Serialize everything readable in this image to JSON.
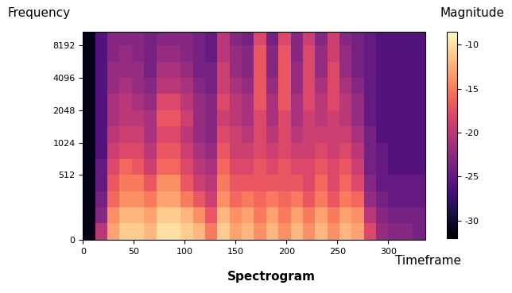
{
  "chart_data": {
    "type": "heatmap",
    "title": "Spectrogram",
    "y_label": "Frequency",
    "x_label": "Timeframe",
    "colorbar_label": "Magnitude",
    "log": "y",
    "xlim": [
      0,
      336
    ],
    "xticks": [
      0,
      50,
      100,
      150,
      200,
      250,
      300
    ],
    "ylim": [
      0,
      11025
    ],
    "yticks": [
      0,
      512,
      1024,
      2048,
      4096,
      8192
    ],
    "x_edges": [
      0,
      12,
      24,
      36,
      48,
      60,
      72,
      84,
      96,
      108,
      120,
      132,
      144,
      156,
      168,
      180,
      192,
      204,
      216,
      228,
      240,
      252,
      264,
      276,
      288,
      300,
      312,
      324,
      336
    ],
    "y_edges": [
      0,
      128,
      256,
      384,
      512,
      724,
      1024,
      1448,
      2048,
      2896,
      4096,
      5793,
      8192,
      11025
    ],
    "cells": [
      [
        -31,
        -20,
        -13,
        -11,
        -11,
        -12,
        -10,
        -10,
        -11,
        -12,
        -15,
        -11,
        -13,
        -12,
        -14,
        -12,
        -14,
        -12,
        -14,
        -12,
        -14,
        -12,
        -13,
        -18,
        -22,
        -23,
        -23,
        -24
      ],
      [
        -31,
        -23,
        -14,
        -12,
        -12,
        -13,
        -11,
        -11,
        -12,
        -14,
        -17,
        -12,
        -14,
        -13,
        -15,
        -13,
        -15,
        -13,
        -15,
        -13,
        -15,
        -13,
        -14,
        -20,
        -23,
        -24,
        -24,
        -24
      ],
      [
        -31,
        -24,
        -16,
        -14,
        -14,
        -15,
        -13,
        -13,
        -15,
        -17,
        -19,
        -14,
        -16,
        -15,
        -16,
        -15,
        -16,
        -15,
        -17,
        -15,
        -17,
        -15,
        -16,
        -22,
        -24,
        -25,
        -25,
        -25
      ],
      [
        -31,
        -25,
        -17,
        -15,
        -15,
        -17,
        -14,
        -14,
        -17,
        -19,
        -20,
        -15,
        -17,
        -17,
        -17,
        -17,
        -17,
        -17,
        -18,
        -16,
        -18,
        -16,
        -18,
        -23,
        -25,
        -25,
        -25,
        -25
      ],
      [
        -31,
        -25,
        -18,
        -16,
        -17,
        -19,
        -16,
        -16,
        -18,
        -20,
        -21,
        -16,
        -18,
        -18,
        -17,
        -18,
        -17,
        -18,
        -18,
        -17,
        -18,
        -17,
        -19,
        -24,
        -25,
        -26,
        -26,
        -26
      ],
      [
        -31,
        -26,
        -19,
        -18,
        -18,
        -20,
        -17,
        -17,
        -19,
        -21,
        -22,
        -17,
        -19,
        -19,
        -18,
        -19,
        -18,
        -19,
        -19,
        -18,
        -19,
        -18,
        -20,
        -24,
        -25,
        -26,
        -26,
        -26
      ],
      [
        -31,
        -26,
        -20,
        -19,
        -19,
        -21,
        -18,
        -18,
        -20,
        -22,
        -23,
        -18,
        -19,
        -20,
        -18,
        -20,
        -18,
        -20,
        -19,
        -19,
        -19,
        -19,
        -21,
        -24,
        -26,
        -26,
        -26,
        -26
      ],
      [
        -31,
        -26,
        -21,
        -20,
        -20,
        -21,
        -17,
        -17,
        -19,
        -22,
        -23,
        -19,
        -20,
        -21,
        -18,
        -21,
        -18,
        -21,
        -19,
        -20,
        -19,
        -20,
        -22,
        -25,
        -26,
        -26,
        -26,
        -26
      ],
      [
        -31,
        -26,
        -21,
        -20,
        -21,
        -22,
        -18,
        -18,
        -20,
        -22,
        -23,
        -18,
        -20,
        -21,
        -17,
        -21,
        -17,
        -21,
        -18,
        -20,
        -18,
        -20,
        -22,
        -25,
        -26,
        -26,
        -26,
        -26
      ],
      [
        -31,
        -26,
        -22,
        -21,
        -22,
        -23,
        -20,
        -20,
        -21,
        -23,
        -24,
        -19,
        -21,
        -22,
        -17,
        -22,
        -17,
        -22,
        -18,
        -21,
        -18,
        -21,
        -23,
        -25,
        -26,
        -26,
        -26,
        -26
      ],
      [
        -31,
        -26,
        -22,
        -22,
        -22,
        -24,
        -21,
        -21,
        -22,
        -24,
        -24,
        -19,
        -22,
        -23,
        -17,
        -23,
        -17,
        -22,
        -18,
        -22,
        -18,
        -22,
        -24,
        -25,
        -26,
        -26,
        -26,
        -26
      ],
      [
        -31,
        -26,
        -23,
        -22,
        -23,
        -24,
        -22,
        -22,
        -23,
        -24,
        -25,
        -20,
        -22,
        -23,
        -17,
        -23,
        -17,
        -23,
        -18,
        -22,
        -19,
        -22,
        -24,
        -25,
        -26,
        -26,
        -26,
        -26
      ],
      [
        -31,
        -26,
        -23,
        -23,
        -23,
        -24,
        -23,
        -23,
        -23,
        -24,
        -25,
        -20,
        -23,
        -24,
        -18,
        -24,
        -18,
        -23,
        -19,
        -23,
        -19,
        -23,
        -24,
        -25,
        -26,
        -26,
        -26,
        -26
      ]
    ],
    "clim": [
      -32,
      -8.5
    ],
    "cticks": [
      -10,
      -15,
      -20,
      -25,
      -30
    ]
  }
}
